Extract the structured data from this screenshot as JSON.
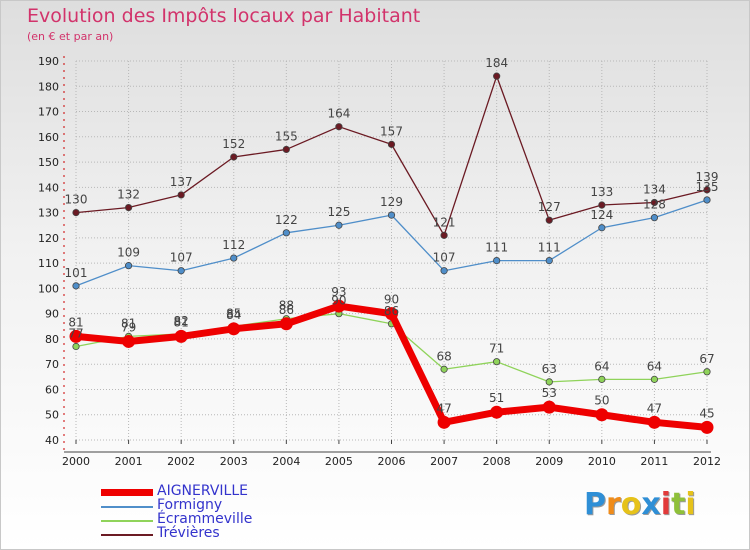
{
  "chart_data": {
    "type": "line",
    "title": "Evolution des Impôts locaux par Habitant",
    "subtitle": "(en € et par an)",
    "xlabel": "",
    "ylabel": "",
    "ylim": [
      40,
      190
    ],
    "y_ticks": [
      40,
      50,
      60,
      70,
      80,
      90,
      100,
      110,
      120,
      130,
      140,
      150,
      160,
      170,
      180,
      190
    ],
    "grid": true,
    "legend_position": "bottom-left",
    "categories": [
      "2000",
      "2001",
      "2002",
      "2003",
      "2004",
      "2005",
      "2006",
      "2007",
      "2008",
      "2009",
      "2010",
      "2011",
      "2012"
    ],
    "series": [
      {
        "name": "Trévières",
        "color": "#6b1a23",
        "values": [
          130,
          132,
          137,
          152,
          155,
          164,
          157,
          121,
          184,
          127,
          133,
          134,
          139
        ],
        "value_labels": [
          "130",
          "132",
          "137",
          "152",
          "155",
          "164",
          "157",
          "121",
          "184",
          "127",
          "133",
          "134",
          "139"
        ]
      },
      {
        "name": "Formigny",
        "color": "#4f8ec9",
        "values": [
          101,
          109,
          107,
          112,
          122,
          125,
          129,
          107,
          111,
          111,
          124,
          128,
          135
        ],
        "value_labels": [
          "101",
          "109",
          "107",
          "112",
          "122",
          "125",
          "129",
          "107",
          "111",
          "111",
          "124",
          "128",
          "135"
        ]
      },
      {
        "name": "Écrammeville",
        "color": "#8fd35a",
        "values": [
          77,
          81,
          82,
          85,
          88,
          90,
          86,
          68,
          71,
          63,
          64,
          64,
          67
        ],
        "value_labels": [
          "77",
          "81",
          "82",
          "85",
          "88",
          "90",
          "86",
          "68",
          "71",
          "63",
          "64",
          "64",
          "67"
        ]
      },
      {
        "name": "AIGNERVILLE",
        "color": "#ee0000",
        "values": [
          81,
          79,
          81,
          84,
          86,
          93,
          90,
          47,
          51,
          53,
          50,
          47,
          45
        ],
        "value_labels": [
          "81",
          "79",
          "81",
          "84",
          "86",
          "93",
          "90",
          "47",
          "51",
          "53",
          "50",
          "47",
          "45"
        ]
      }
    ],
    "legend_order": [
      "AIGNERVILLE",
      "Formigny",
      "Écrammeville",
      "Trévières"
    ]
  },
  "logo": {
    "letters": [
      "P",
      "r",
      "o",
      "x",
      "i",
      "t",
      "i"
    ],
    "colors": [
      "#2f8fd6",
      "#f08c1a",
      "#e6c21a",
      "#2f8fd6",
      "#e23a3a",
      "#8fc03a",
      "#e6c21a"
    ]
  }
}
